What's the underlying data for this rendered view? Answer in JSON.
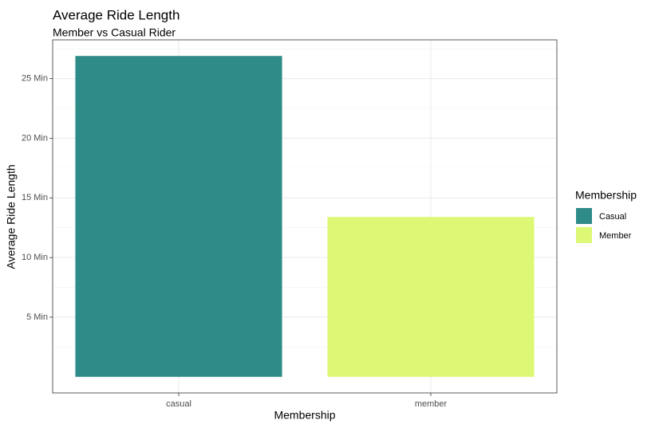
{
  "chart_data": {
    "type": "bar",
    "title": "Average Ride Length",
    "subtitle": "Member vs Casual Rider",
    "xlabel": "Membership",
    "ylabel": "Average Ride Length",
    "categories": [
      "casual",
      "member"
    ],
    "values": [
      26.9,
      13.4
    ],
    "unit_suffix": " Min",
    "y_ticks": [
      5,
      10,
      15,
      20,
      25
    ],
    "y_tick_labels": [
      "5 Min",
      "10 Min",
      "15 Min",
      "20 Min",
      "25 Min"
    ],
    "ylim": [
      -1.35,
      28.25
    ],
    "grid": true,
    "legend": {
      "title": "Membership",
      "placement": "right",
      "entries": [
        {
          "label": "Casual",
          "color": "#2e8b87"
        },
        {
          "label": "Member",
          "color": "#dcf875"
        }
      ]
    },
    "colors": [
      "#2e8b87",
      "#dcf875"
    ]
  }
}
